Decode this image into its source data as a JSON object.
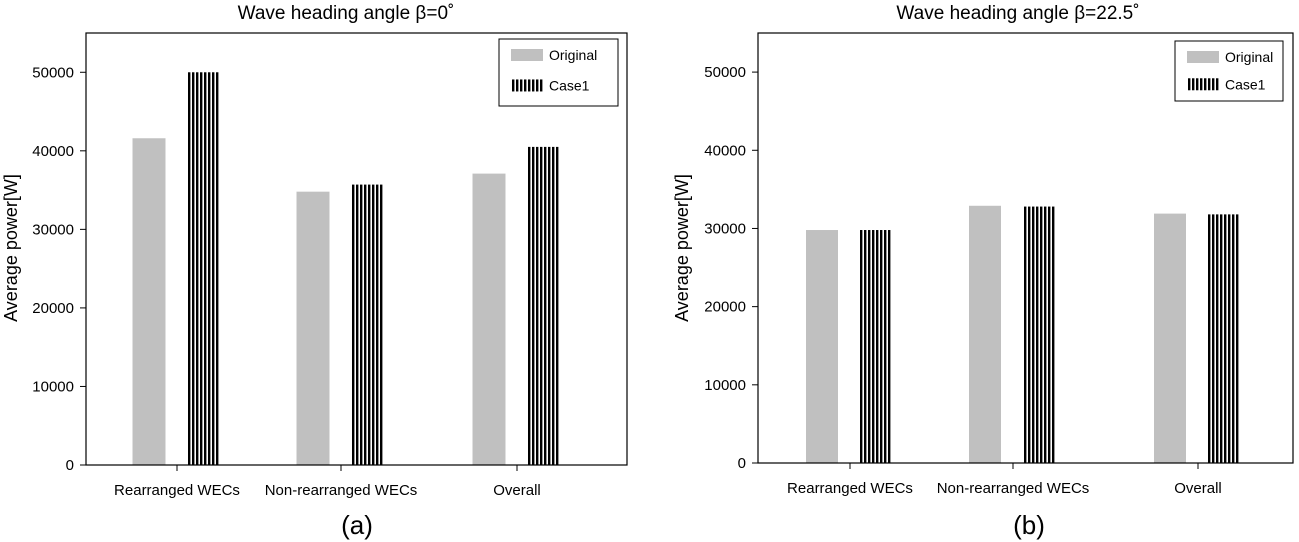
{
  "chart_data": [
    {
      "type": "bar",
      "title": "Wave heading angle β=0˚",
      "panel_label": "(a)",
      "ylabel": "Average power[W]",
      "xlabel": "",
      "categories": [
        "Rearranged WECs",
        "Non-rearranged WECs",
        "Overall"
      ],
      "series": [
        {
          "name": "Original",
          "values": [
            41600,
            34800,
            37100
          ],
          "color": "#c0c0c0",
          "pattern": "solid"
        },
        {
          "name": "Case1",
          "values": [
            50000,
            35700,
            40500
          ],
          "color": "#000000",
          "pattern": "vertical-stripes"
        }
      ],
      "ylim": [
        0,
        55000
      ],
      "yticks": [
        0,
        10000,
        20000,
        30000,
        40000,
        50000
      ],
      "grid": false,
      "legend": "top-right"
    },
    {
      "type": "bar",
      "title": "Wave heading angle β=22.5˚",
      "panel_label": "(b)",
      "ylabel": "Average power[W]",
      "xlabel": "",
      "categories": [
        "Rearranged WECs",
        "Non-rearranged WECs",
        "Overall"
      ],
      "series": [
        {
          "name": "Original",
          "values": [
            29800,
            32900,
            31900
          ],
          "color": "#c0c0c0",
          "pattern": "solid"
        },
        {
          "name": "Case1",
          "values": [
            29800,
            32800,
            31800
          ],
          "color": "#000000",
          "pattern": "vertical-stripes"
        }
      ],
      "ylim": [
        0,
        55000
      ],
      "yticks": [
        0,
        10000,
        20000,
        30000,
        40000,
        50000
      ],
      "grid": false,
      "legend": "top-right"
    }
  ]
}
